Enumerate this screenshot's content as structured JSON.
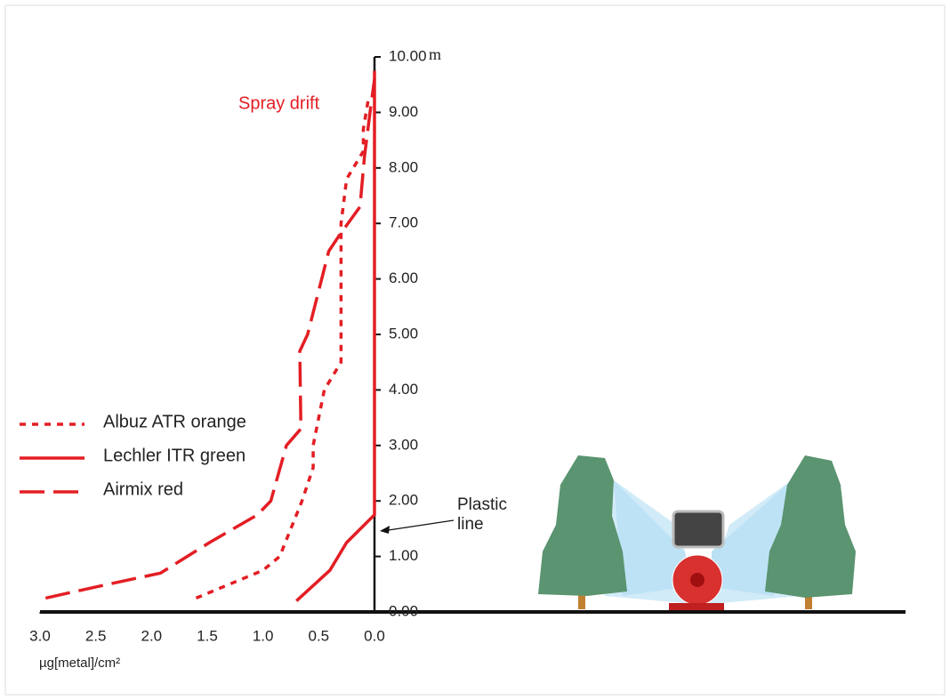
{
  "chart_data": {
    "type": "line",
    "x_label": "µg[metal]/cm²",
    "y_unit": "m",
    "annotations": [
      "Spray drift",
      "Plastic line"
    ],
    "xlim": [
      3,
      0
    ],
    "xticks": [
      {
        "value": 3,
        "label": "3.0"
      },
      {
        "value": 2.5,
        "label": "2.5"
      },
      {
        "value": 2,
        "label": "2.0"
      },
      {
        "value": 1.5,
        "label": "1.5"
      },
      {
        "value": 1,
        "label": "1.0"
      },
      {
        "value": 0.5,
        "label": "0.5"
      },
      {
        "value": 0,
        "label": "0.0"
      }
    ],
    "ylim": [
      0,
      10
    ],
    "yticks": [
      {
        "value": 0,
        "label": "0.00"
      },
      {
        "value": 1,
        "label": "1.00"
      },
      {
        "value": 2,
        "label": "2.00"
      },
      {
        "value": 3,
        "label": "3.00"
      },
      {
        "value": 4,
        "label": "4.00"
      },
      {
        "value": 5,
        "label": "5.00"
      },
      {
        "value": 6,
        "label": "6.00"
      },
      {
        "value": 7,
        "label": "7.00"
      },
      {
        "value": 8,
        "label": "8.00"
      },
      {
        "value": 9,
        "label": "9.00"
      },
      {
        "value": 10,
        "label": "10.00"
      }
    ],
    "series": [
      {
        "name": "Albuz ATR orange",
        "color": "#e31e24",
        "dash": "dotted",
        "x": [
          1.6,
          1.0,
          0.85,
          0.65,
          0.55,
          0.55,
          0.45,
          0.3,
          0.3,
          0.3,
          0.25,
          0.1,
          0.1,
          0.05
        ],
        "y": [
          0.25,
          0.75,
          1.0,
          2.0,
          2.6,
          3.0,
          4.0,
          4.5,
          6.5,
          7.0,
          7.8,
          8.3,
          8.7,
          9.3
        ]
      },
      {
        "name": "Lechler ITR green",
        "color": "#e31e24",
        "dash": "solid",
        "x": [
          0.7,
          0.4,
          0.25,
          0.0,
          0.0
        ],
        "y": [
          0.2,
          0.75,
          1.25,
          1.75,
          9.75
        ]
      },
      {
        "name": "Airmix red",
        "color": "#e31e24",
        "dash": "dashed",
        "x": [
          2.95,
          2.5,
          1.92,
          1.76,
          1.48,
          1.05,
          0.93,
          0.79,
          0.66,
          0.67,
          0.6,
          0.41,
          0.31,
          0.13,
          0.09,
          0.04,
          0.0
        ],
        "y": [
          0.25,
          0.45,
          0.7,
          0.9,
          1.25,
          1.75,
          2.0,
          3.0,
          3.3,
          4.7,
          5.0,
          6.5,
          6.8,
          7.3,
          8.2,
          9.0,
          9.6
        ]
      }
    ]
  }
}
